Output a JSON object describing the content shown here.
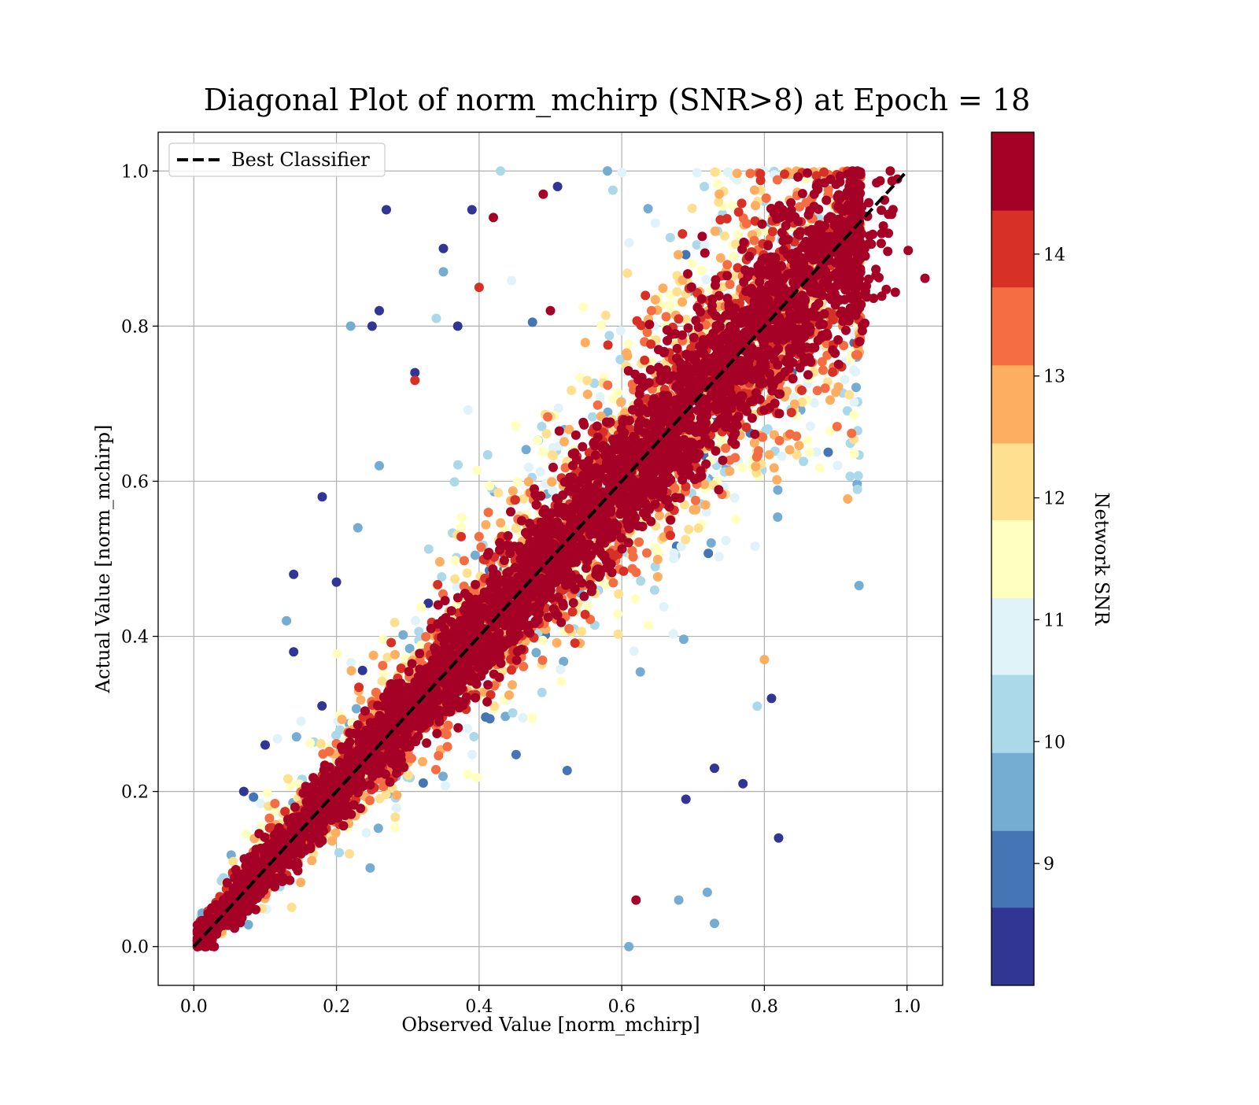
{
  "colors": {
    "background": "#ffffff",
    "grid": "#b0b0b0",
    "diagonal": "#000000",
    "colormap": [
      "#313695",
      "#4575b4",
      "#74add1",
      "#abd9e9",
      "#e0f3f8",
      "#ffffbf",
      "#fee090",
      "#fdae61",
      "#f46d43",
      "#d73027",
      "#a50026"
    ]
  },
  "chart_data": {
    "type": "scatter",
    "title": "Diagonal Plot of norm_mchirp (SNR>8) at Epoch = 18",
    "xlabel": "Observed Value [norm_mchirp]",
    "ylabel": "Actual Value [norm_mchirp]",
    "xlim": [
      -0.05,
      1.05
    ],
    "ylim": [
      -0.05,
      1.05
    ],
    "xticks": [
      "0.0",
      "0.2",
      "0.4",
      "0.6",
      "0.8",
      "1.0"
    ],
    "yticks": [
      "0.0",
      "0.2",
      "0.4",
      "0.6",
      "0.8",
      "1.0"
    ],
    "xtick_values": [
      0.0,
      0.2,
      0.4,
      0.6,
      0.8,
      1.0
    ],
    "ytick_values": [
      0.0,
      0.2,
      0.4,
      0.6,
      0.8,
      1.0
    ],
    "grid": true,
    "legend": {
      "position": "top-left",
      "entries": [
        {
          "label": "Best Classifier",
          "style": "dashed"
        }
      ]
    },
    "reference_line": {
      "name": "Best Classifier",
      "x": [
        0.0,
        1.0
      ],
      "y": [
        0.0,
        1.0
      ]
    },
    "colorbar": {
      "label": "Network SNR",
      "range": [
        8.0,
        15.0
      ],
      "bins": [
        8.0,
        8.64,
        9.27,
        9.91,
        10.55,
        11.18,
        11.82,
        12.45,
        13.09,
        13.73,
        14.36,
        15.0
      ],
      "ticks": [
        9,
        10,
        11,
        12,
        13,
        14
      ],
      "ticklabels": [
        "9",
        "10",
        "11",
        "12",
        "13",
        "14"
      ]
    },
    "description_values": {
      "x_range_observed": [
        0.0,
        0.93
      ],
      "y_range_actual": [
        0.0,
        1.0
      ]
    },
    "outlier_points": [
      {
        "x": 0.27,
        "y": 0.95,
        "snr": 8.3
      },
      {
        "x": 0.42,
        "y": 0.94,
        "snr": 14.8
      },
      {
        "x": 0.39,
        "y": 0.95,
        "snr": 8.3
      },
      {
        "x": 0.35,
        "y": 0.9,
        "snr": 8.5
      },
      {
        "x": 0.35,
        "y": 0.87,
        "snr": 9.5
      },
      {
        "x": 0.4,
        "y": 0.85,
        "snr": 14.0
      },
      {
        "x": 0.26,
        "y": 0.82,
        "snr": 8.3
      },
      {
        "x": 0.22,
        "y": 0.8,
        "snr": 9.8
      },
      {
        "x": 0.25,
        "y": 0.8,
        "snr": 8.4
      },
      {
        "x": 0.37,
        "y": 0.8,
        "snr": 8.3
      },
      {
        "x": 0.34,
        "y": 0.81,
        "snr": 10.5
      },
      {
        "x": 0.31,
        "y": 0.74,
        "snr": 8.6
      },
      {
        "x": 0.31,
        "y": 0.73,
        "snr": 14.0
      },
      {
        "x": 0.26,
        "y": 0.62,
        "snr": 9.5
      },
      {
        "x": 0.18,
        "y": 0.58,
        "snr": 8.4
      },
      {
        "x": 0.23,
        "y": 0.54,
        "snr": 9.3
      },
      {
        "x": 0.14,
        "y": 0.48,
        "snr": 8.5
      },
      {
        "x": 0.2,
        "y": 0.47,
        "snr": 8.4
      },
      {
        "x": 0.13,
        "y": 0.42,
        "snr": 9.4
      },
      {
        "x": 0.14,
        "y": 0.38,
        "snr": 8.6
      },
      {
        "x": 0.1,
        "y": 0.26,
        "snr": 8.4
      },
      {
        "x": 0.07,
        "y": 0.2,
        "snr": 8.6
      },
      {
        "x": 0.82,
        "y": 0.14,
        "snr": 8.4
      },
      {
        "x": 0.77,
        "y": 0.21,
        "snr": 8.5
      },
      {
        "x": 0.73,
        "y": 0.23,
        "snr": 8.4
      },
      {
        "x": 0.69,
        "y": 0.19,
        "snr": 8.5
      },
      {
        "x": 0.72,
        "y": 0.07,
        "snr": 9.8
      },
      {
        "x": 0.73,
        "y": 0.03,
        "snr": 9.6
      },
      {
        "x": 0.68,
        "y": 0.06,
        "snr": 9.5
      },
      {
        "x": 0.62,
        "y": 0.06,
        "snr": 14.6
      },
      {
        "x": 0.61,
        "y": 0.0,
        "snr": 9.4
      },
      {
        "x": 0.81,
        "y": 0.32,
        "snr": 8.5
      },
      {
        "x": 0.79,
        "y": 0.31,
        "snr": 10.2
      },
      {
        "x": 0.8,
        "y": 0.37,
        "snr": 12.8
      },
      {
        "x": 0.51,
        "y": 0.98,
        "snr": 8.4
      },
      {
        "x": 0.49,
        "y": 0.97,
        "snr": 14.7
      },
      {
        "x": 0.43,
        "y": 1.0,
        "snr": 10.2
      },
      {
        "x": 0.58,
        "y": 1.0,
        "snr": 9.8
      },
      {
        "x": 0.5,
        "y": 0.82,
        "snr": 14.5
      }
    ]
  }
}
